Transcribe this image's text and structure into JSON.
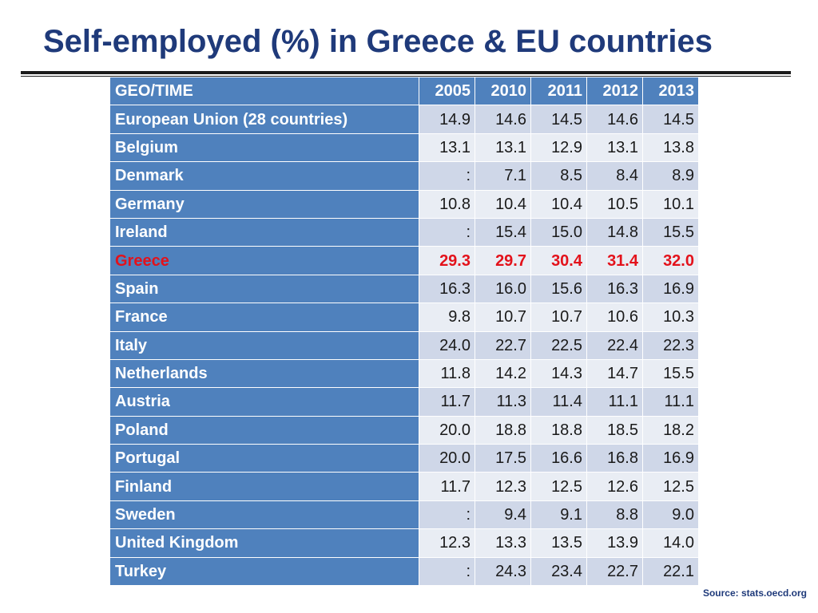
{
  "title": "Self-employed (%) in Greece & EU countries",
  "table": {
    "header_label": "GEO/TIME",
    "years": [
      "2005",
      "2010",
      "2011",
      "2012",
      "2013"
    ],
    "rows": [
      {
        "country": "European Union (28 countries)",
        "values": [
          "14.9",
          "14.6",
          "14.5",
          "14.6",
          "14.5"
        ]
      },
      {
        "country": "Belgium",
        "values": [
          "13.1",
          "13.1",
          "12.9",
          "13.1",
          "13.8"
        ]
      },
      {
        "country": "Denmark",
        "values": [
          ":",
          "7.1",
          "8.5",
          "8.4",
          "8.9"
        ]
      },
      {
        "country": "Germany",
        "values": [
          "10.8",
          "10.4",
          "10.4",
          "10.5",
          "10.1"
        ]
      },
      {
        "country": "Ireland",
        "values": [
          ":",
          "15.4",
          "15.0",
          "14.8",
          "15.5"
        ]
      },
      {
        "country": "Greece",
        "values": [
          "29.3",
          "29.7",
          "30.4",
          "31.4",
          "32.0"
        ],
        "highlight": true
      },
      {
        "country": "Spain",
        "values": [
          "16.3",
          "16.0",
          "15.6",
          "16.3",
          "16.9"
        ]
      },
      {
        "country": "France",
        "values": [
          "9.8",
          "10.7",
          "10.7",
          "10.6",
          "10.3"
        ]
      },
      {
        "country": "Italy",
        "values": [
          "24.0",
          "22.7",
          "22.5",
          "22.4",
          "22.3"
        ]
      },
      {
        "country": "Netherlands",
        "values": [
          "11.8",
          "14.2",
          "14.3",
          "14.7",
          "15.5"
        ]
      },
      {
        "country": "Austria",
        "values": [
          "11.7",
          "11.3",
          "11.4",
          "11.1",
          "11.1"
        ]
      },
      {
        "country": "Poland",
        "values": [
          "20.0",
          "18.8",
          "18.8",
          "18.5",
          "18.2"
        ]
      },
      {
        "country": "Portugal",
        "values": [
          "20.0",
          "17.5",
          "16.6",
          "16.8",
          "16.9"
        ]
      },
      {
        "country": "Finland",
        "values": [
          "11.7",
          "12.3",
          "12.5",
          "12.6",
          "12.5"
        ]
      },
      {
        "country": "Sweden",
        "values": [
          ":",
          "9.4",
          "9.1",
          "8.8",
          "9.0"
        ]
      },
      {
        "country": "United Kingdom",
        "values": [
          "12.3",
          "13.3",
          "13.5",
          "13.9",
          "14.0"
        ]
      },
      {
        "country": "Turkey",
        "values": [
          ":",
          "24.3",
          "23.4",
          "22.7",
          "22.1"
        ]
      }
    ],
    "colors": {
      "header_bg": "#4f81bd",
      "row_odd_bg": "#cfd7e8",
      "row_even_bg": "#e9edf4",
      "highlight_text": "#e3121b",
      "title_text": "#1f3a7a"
    }
  },
  "source": "Source: stats.oecd.org"
}
